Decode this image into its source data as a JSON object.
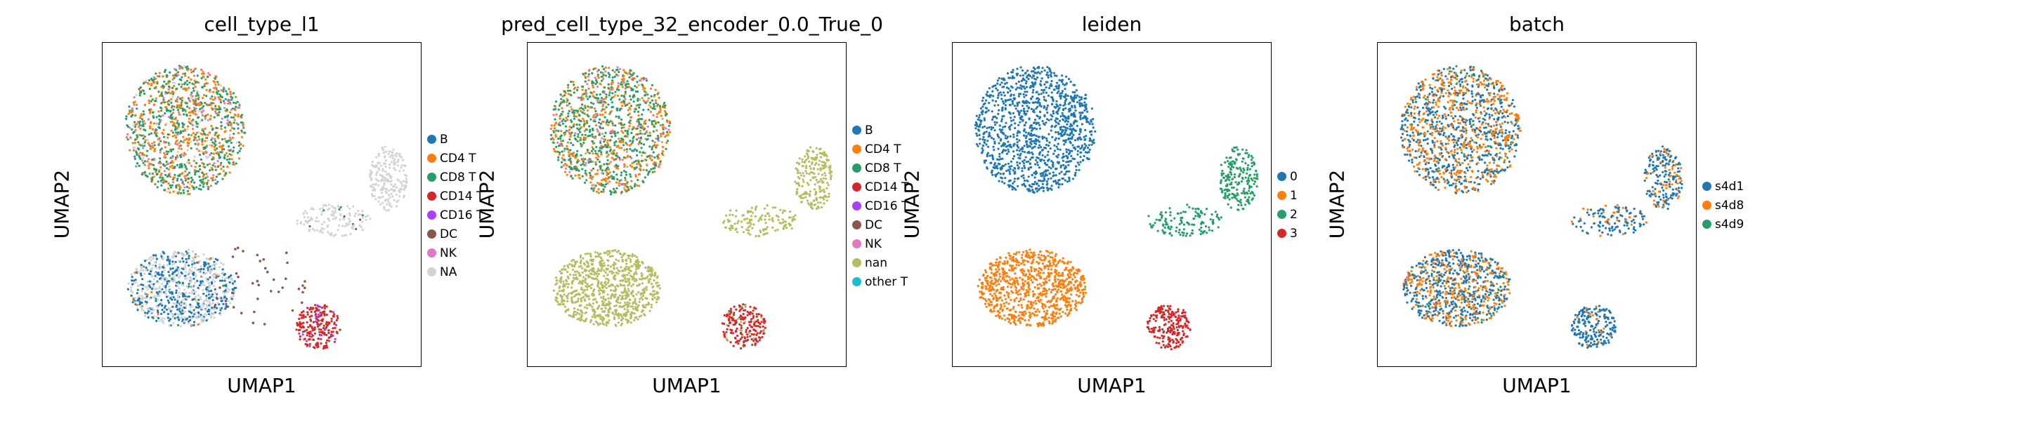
{
  "figure": {
    "panel_1": {
      "title": "cell_type_l1",
      "xlabel": "UMAP1",
      "ylabel": "UMAP2",
      "legend": [
        {
          "label": "B",
          "color": "#1f77b4"
        },
        {
          "label": "CD4 T",
          "color": "#ff7f0e"
        },
        {
          "label": "CD8 T",
          "color": "#279e68"
        },
        {
          "label": "CD14 T",
          "color": "#d62728"
        },
        {
          "label": "CD16 T",
          "color": "#aa40fc"
        },
        {
          "label": "DC",
          "color": "#8c564b"
        },
        {
          "label": "NK",
          "color": "#e377c2"
        },
        {
          "label": "NA",
          "color": "#d3d3d3"
        }
      ]
    },
    "panel_2": {
      "title": "pred_cell_type_32_encoder_0.0_True_0",
      "xlabel": "UMAP1",
      "ylabel": "UMAP2",
      "legend": [
        {
          "label": "B",
          "color": "#1f77b4"
        },
        {
          "label": "CD4 T",
          "color": "#ff7f0e"
        },
        {
          "label": "CD8 T",
          "color": "#279e68"
        },
        {
          "label": "CD14 T",
          "color": "#d62728"
        },
        {
          "label": "CD16 T",
          "color": "#aa40fc"
        },
        {
          "label": "DC",
          "color": "#8c564b"
        },
        {
          "label": "NK",
          "color": "#e377c2"
        },
        {
          "label": "nan",
          "color": "#b5bd61"
        },
        {
          "label": "other T",
          "color": "#17becf"
        }
      ]
    },
    "panel_3": {
      "title": "leiden",
      "xlabel": "UMAP1",
      "ylabel": "UMAP2",
      "legend": [
        {
          "label": "0",
          "color": "#1f77b4"
        },
        {
          "label": "1",
          "color": "#ff7f0e"
        },
        {
          "label": "2",
          "color": "#279e68"
        },
        {
          "label": "3",
          "color": "#d62728"
        }
      ]
    },
    "panel_4": {
      "title": "batch",
      "xlabel": "UMAP1",
      "ylabel": "UMAP2",
      "legend": [
        {
          "label": "s4d1",
          "color": "#1f77b4"
        },
        {
          "label": "s4d8",
          "color": "#ff7f0e"
        },
        {
          "label": "s4d9",
          "color": "#279e68"
        }
      ]
    }
  },
  "chart_data": [
    {
      "type": "scatter",
      "title": "cell_type_l1",
      "xlabel": "UMAP1",
      "ylabel": "UMAP2",
      "xticks": "none",
      "yticks": "none",
      "grid": false,
      "legend_position": "right",
      "categories": [
        "B",
        "CD4 T",
        "CD8 T",
        "CD14 T",
        "CD16 T",
        "DC",
        "NK",
        "NA"
      ],
      "clusters": [
        {
          "region": "upper-left",
          "cx": 0.26,
          "cy": 0.73,
          "rx": 0.19,
          "ry": 0.2,
          "share": 0.46,
          "mix": {
            "CD8 T": 0.5,
            "CD4 T": 0.35,
            "NK": 0.1,
            "NA": 0.05
          }
        },
        {
          "region": "lower-left",
          "cx": 0.25,
          "cy": 0.24,
          "rx": 0.17,
          "ry": 0.12,
          "share": 0.33,
          "mix": {
            "NA": 0.55,
            "B": 0.4,
            "CD8 T": 0.03,
            "CD4 T": 0.02
          }
        },
        {
          "region": "lower-right",
          "cx": 0.68,
          "cy": 0.12,
          "rx": 0.07,
          "ry": 0.07,
          "share": 0.08,
          "mix": {
            "CD14 T": 0.8,
            "CD16 T": 0.12,
            "DC": 0.08
          }
        },
        {
          "region": "bridge-to-right-arm",
          "cx": 0.73,
          "cy": 0.45,
          "rx": 0.12,
          "ry": 0.05,
          "share": 0.05,
          "mix": {
            "NA": 0.9,
            "DC": 0.05,
            "CD8 T": 0.05
          }
        },
        {
          "region": "right-arm",
          "cx": 0.9,
          "cy": 0.58,
          "rx": 0.06,
          "ry": 0.1,
          "share": 0.08,
          "mix": {
            "NA": 1.0
          }
        }
      ],
      "markers": {
        "series": "DC",
        "region": "scattered between left clusters and lower-right cluster"
      }
    },
    {
      "type": "scatter",
      "title": "pred_cell_type_32_encoder_0.0_True_0",
      "xlabel": "UMAP1",
      "ylabel": "UMAP2",
      "xticks": "none",
      "yticks": "none",
      "grid": false,
      "legend_position": "right",
      "categories": [
        "B",
        "CD4 T",
        "CD8 T",
        "CD14 T",
        "CD16 T",
        "DC",
        "NK",
        "nan",
        "other T"
      ],
      "clusters": [
        {
          "region": "upper-left",
          "cx": 0.26,
          "cy": 0.73,
          "rx": 0.19,
          "ry": 0.2,
          "share": 0.46,
          "mix": {
            "CD8 T": 0.52,
            "CD4 T": 0.36,
            "NK": 0.08,
            "nan": 0.04
          }
        },
        {
          "region": "lower-left",
          "cx": 0.25,
          "cy": 0.24,
          "rx": 0.17,
          "ry": 0.12,
          "share": 0.33,
          "mix": {
            "nan": 1.0
          }
        },
        {
          "region": "lower-right",
          "cx": 0.68,
          "cy": 0.12,
          "rx": 0.07,
          "ry": 0.07,
          "share": 0.08,
          "mix": {
            "CD14 T": 0.75,
            "DC": 0.1,
            "nan": 0.15
          }
        },
        {
          "region": "bridge-to-right-arm",
          "cx": 0.73,
          "cy": 0.45,
          "rx": 0.12,
          "ry": 0.05,
          "share": 0.05,
          "mix": {
            "nan": 1.0
          }
        },
        {
          "region": "right-arm",
          "cx": 0.9,
          "cy": 0.58,
          "rx": 0.06,
          "ry": 0.1,
          "share": 0.08,
          "mix": {
            "nan": 1.0
          }
        }
      ]
    },
    {
      "type": "scatter",
      "title": "leiden",
      "xlabel": "UMAP1",
      "ylabel": "UMAP2",
      "xticks": "none",
      "yticks": "none",
      "grid": false,
      "legend_position": "right",
      "categories": [
        "0",
        "1",
        "2",
        "3"
      ],
      "clusters": [
        {
          "region": "upper-left",
          "cx": 0.26,
          "cy": 0.73,
          "rx": 0.19,
          "ry": 0.2,
          "share": 0.46,
          "mix": {
            "0": 1.0
          }
        },
        {
          "region": "lower-left",
          "cx": 0.25,
          "cy": 0.24,
          "rx": 0.17,
          "ry": 0.12,
          "share": 0.33,
          "mix": {
            "1": 1.0
          }
        },
        {
          "region": "lower-right",
          "cx": 0.68,
          "cy": 0.12,
          "rx": 0.07,
          "ry": 0.07,
          "share": 0.08,
          "mix": {
            "3": 1.0
          }
        },
        {
          "region": "bridge-to-right-arm",
          "cx": 0.73,
          "cy": 0.45,
          "rx": 0.12,
          "ry": 0.05,
          "share": 0.05,
          "mix": {
            "2": 1.0
          }
        },
        {
          "region": "right-arm",
          "cx": 0.9,
          "cy": 0.58,
          "rx": 0.06,
          "ry": 0.1,
          "share": 0.08,
          "mix": {
            "2": 1.0
          }
        }
      ]
    },
    {
      "type": "scatter",
      "title": "batch",
      "xlabel": "UMAP1",
      "ylabel": "UMAP2",
      "xticks": "none",
      "yticks": "none",
      "grid": false,
      "legend_position": "right",
      "categories": [
        "s4d1",
        "s4d8",
        "s4d9"
      ],
      "clusters": [
        {
          "region": "upper-left",
          "cx": 0.26,
          "cy": 0.73,
          "rx": 0.19,
          "ry": 0.2,
          "share": 0.46,
          "mix": {
            "s4d1": 0.48,
            "s4d8": 0.48,
            "s4d9": 0.04
          }
        },
        {
          "region": "lower-left",
          "cx": 0.25,
          "cy": 0.24,
          "rx": 0.17,
          "ry": 0.12,
          "share": 0.33,
          "mix": {
            "s4d1": 0.55,
            "s4d8": 0.42,
            "s4d9": 0.03
          }
        },
        {
          "region": "lower-right",
          "cx": 0.68,
          "cy": 0.12,
          "rx": 0.07,
          "ry": 0.07,
          "share": 0.08,
          "mix": {
            "s4d1": 0.92,
            "s4d8": 0.08
          }
        },
        {
          "region": "bridge-to-right-arm",
          "cx": 0.73,
          "cy": 0.45,
          "rx": 0.12,
          "ry": 0.05,
          "share": 0.05,
          "mix": {
            "s4d1": 0.7,
            "s4d8": 0.3
          }
        },
        {
          "region": "right-arm",
          "cx": 0.9,
          "cy": 0.58,
          "rx": 0.06,
          "ry": 0.1,
          "share": 0.08,
          "mix": {
            "s4d1": 0.65,
            "s4d8": 0.35
          }
        }
      ]
    }
  ]
}
